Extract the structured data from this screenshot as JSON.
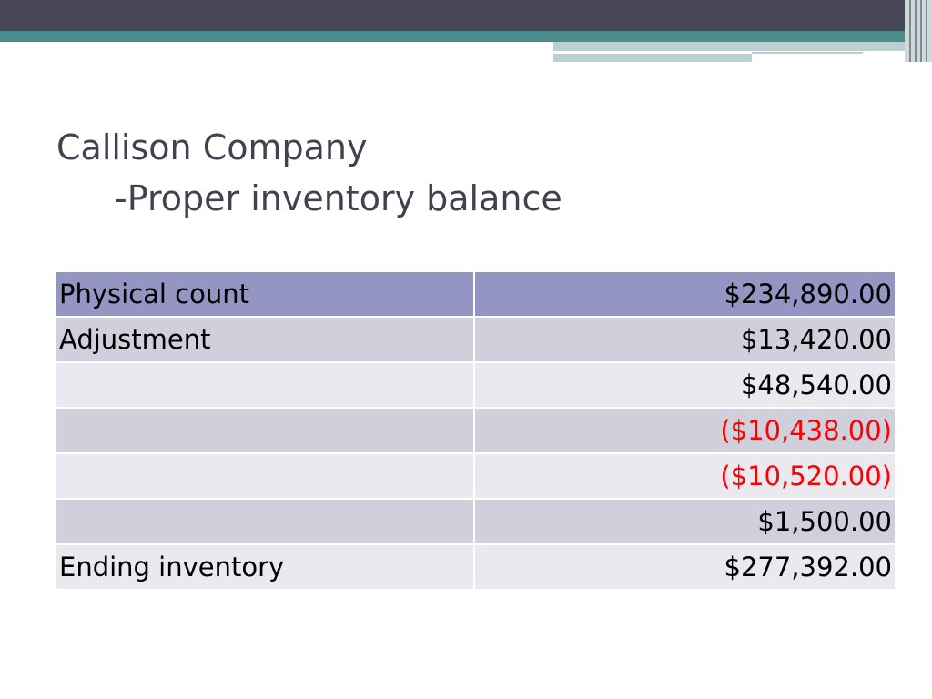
{
  "slide": {
    "title_line1": "Callison Company",
    "title_line2": "-Proper inventory balance"
  },
  "table": {
    "rows": [
      {
        "label": "Physical count",
        "amount": "$234,890.00",
        "negative": false
      },
      {
        "label": "Adjustment",
        "amount": "$13,420.00",
        "negative": false
      },
      {
        "label": "",
        "amount": "$48,540.00",
        "negative": false
      },
      {
        "label": "",
        "amount": "($10,438.00)",
        "negative": true
      },
      {
        "label": "",
        "amount": "($10,520.00)",
        "negative": true
      },
      {
        "label": "",
        "amount": "$1,500.00",
        "negative": false
      },
      {
        "label": "Ending inventory",
        "amount": "$277,392.00",
        "negative": false
      }
    ]
  },
  "colors": {
    "header_band": "#464656",
    "accent_teal": "#4b8b8b",
    "title_text": "#414250",
    "table_header_fill": "#9495c2",
    "table_row_dark": "#cfd0dc",
    "table_row_light": "#e9e9ef",
    "negative_text": "#ff0000"
  }
}
